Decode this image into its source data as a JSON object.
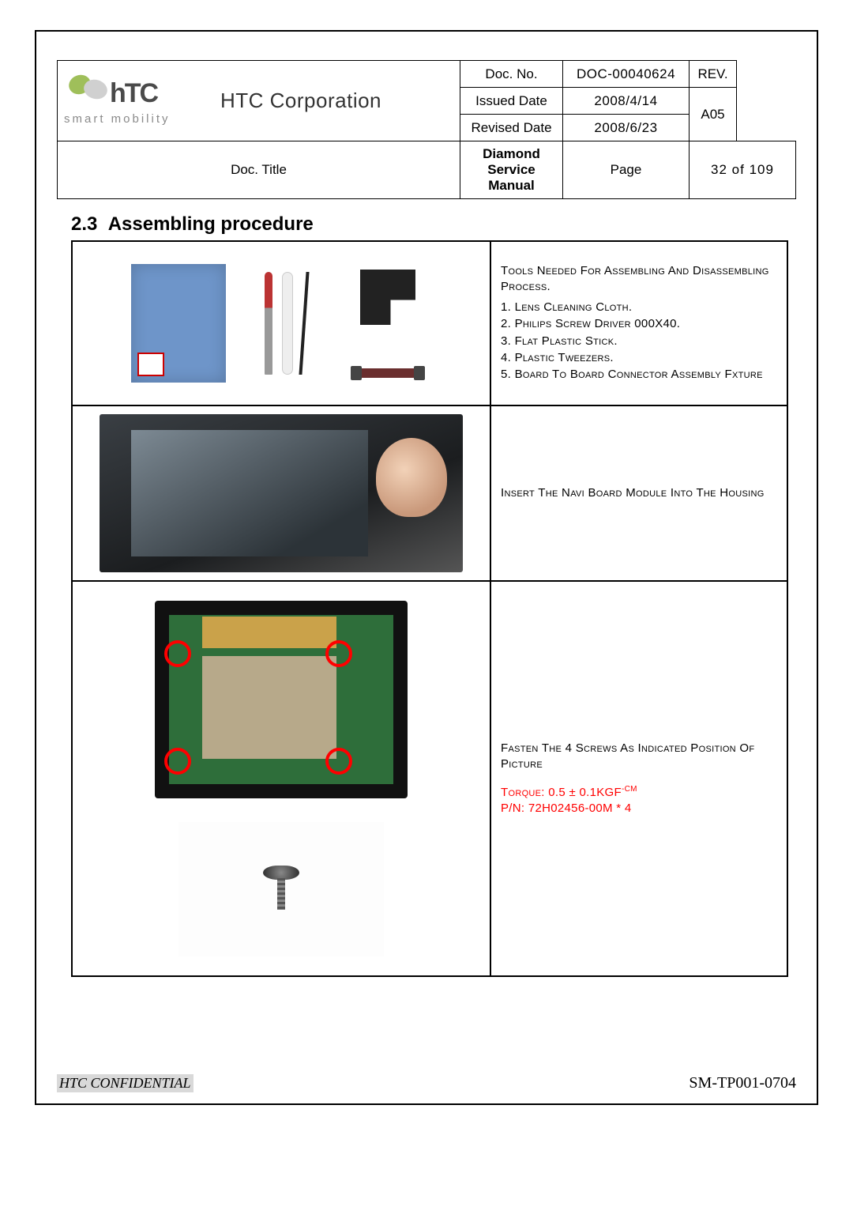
{
  "header": {
    "company": "HTC Corporation",
    "tagline": "smart mobility",
    "doc_no_label": "Doc. No.",
    "doc_no": "DOC-00040624",
    "rev_label": "REV.",
    "rev": "A05",
    "issued_label": "Issued Date",
    "issued": "2008/4/14",
    "revised_label": "Revised Date",
    "revised": "2008/6/23",
    "title_label": "Doc. Title",
    "title": "Diamond Service Manual",
    "page_label": "Page",
    "page": "32  of  109"
  },
  "section": {
    "number": "2.3",
    "title": "Assembling procedure"
  },
  "rows": {
    "r1": {
      "heading": "Tools Needed For Assembling And Disassembling Process.",
      "t1": "1. Lens Cleaning Cloth.",
      "t2": "2. Philips Screw Driver 000X40.",
      "t3": "3. Flat Plastic Stick.",
      "t4": "4. Plastic Tweezers.",
      "t5": "5. Board To Board Connector Assembly Fxture"
    },
    "r2": {
      "text": "Insert The Navi Board Module Into The Housing"
    },
    "r3": {
      "line1": "Fasten The 4 Screws As Indicated Position Of Picture",
      "torque_label": "Torque: 0.5 ± 0.1",
      "torque_unit": "KGF",
      "torque_sup": "-CM",
      "pn": "P/N: 72H02456-00M * 4"
    }
  },
  "footer": {
    "confidential": "HTC CONFIDENTIAL",
    "code": "SM-TP001-0704"
  },
  "colors": {
    "accent_red": "#ff0000",
    "border": "#000000",
    "highlight_bg": "#d9d9d9"
  }
}
